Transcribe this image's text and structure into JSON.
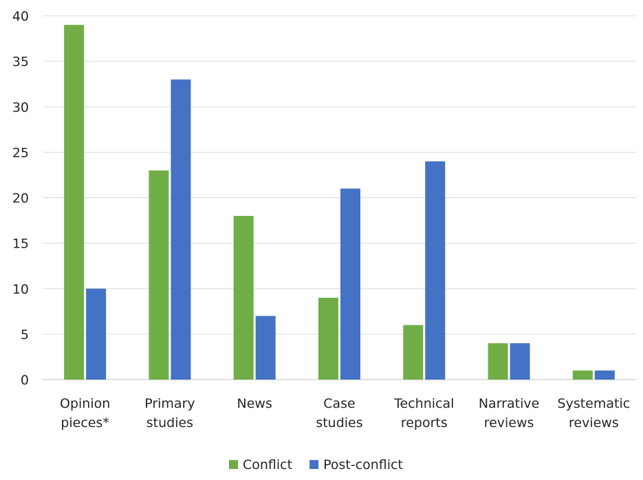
{
  "chart_data": {
    "type": "bar",
    "categories": [
      [
        "Opinion",
        "pieces*"
      ],
      [
        "Primary",
        "studies"
      ],
      [
        "News"
      ],
      [
        "Case",
        "studies"
      ],
      [
        "Technical",
        "reports"
      ],
      [
        "Narrative",
        "reviews"
      ],
      [
        "Systematic",
        "reviews"
      ]
    ],
    "series": [
      {
        "name": "Conflict",
        "color": "#70ad47",
        "values": [
          39,
          23,
          18,
          9,
          6,
          4,
          1
        ]
      },
      {
        "name": "Post-conflict",
        "color": "#4472c4",
        "values": [
          10,
          33,
          7,
          21,
          24,
          4,
          1
        ]
      }
    ],
    "ylim": [
      0,
      40
    ],
    "yticks": [
      0,
      5,
      10,
      15,
      20,
      25,
      30,
      35,
      40
    ],
    "title": "",
    "xlabel": "",
    "ylabel": "",
    "grid": true,
    "legend_position": "bottom"
  }
}
